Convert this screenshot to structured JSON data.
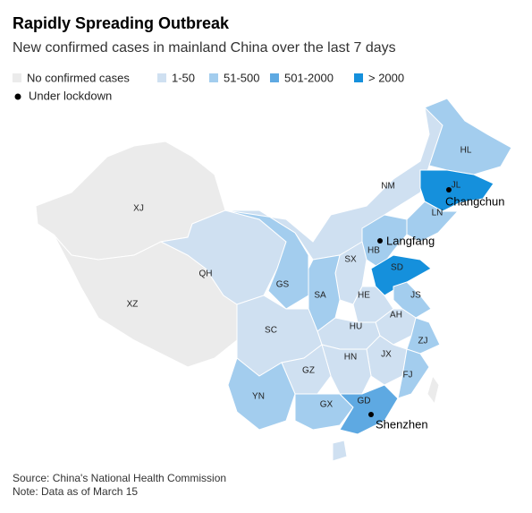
{
  "header": {
    "title": "Rapidly Spreading Outbreak",
    "subtitle": "New confirmed cases in mainland China over the last 7 days"
  },
  "legend": {
    "levels": [
      {
        "label": "No confirmed cases",
        "color": "#ebebeb"
      },
      {
        "label": "1-50",
        "color": "#cfe0f1"
      },
      {
        "label": "51-500",
        "color": "#a3cdee"
      },
      {
        "label": "501-2000",
        "color": "#5ea9e2"
      },
      {
        "label": "> 2000",
        "color": "#1590dc"
      }
    ],
    "lockdown": "Under lockdown"
  },
  "regions": [
    {
      "label": "XJ",
      "level": 0
    },
    {
      "label": "XZ",
      "level": 0
    },
    {
      "label": "QH",
      "level": 1
    },
    {
      "label": "GS",
      "level": 2
    },
    {
      "label": "NM",
      "level": 1
    },
    {
      "label": "HL",
      "level": 2
    },
    {
      "label": "JL",
      "level": 4
    },
    {
      "label": "LN",
      "level": 2
    },
    {
      "label": "HB",
      "level": 2
    },
    {
      "label": "SX",
      "level": 1
    },
    {
      "label": "SD",
      "level": 4
    },
    {
      "label": "SA",
      "level": 2
    },
    {
      "label": "HE",
      "level": 1
    },
    {
      "label": "JS",
      "level": 2
    },
    {
      "label": "AH",
      "level": 1
    },
    {
      "label": "HU",
      "level": 1
    },
    {
      "label": "SC",
      "level": 1
    },
    {
      "label": "ZJ",
      "level": 2
    },
    {
      "label": "JX",
      "level": 1
    },
    {
      "label": "HN",
      "level": 1
    },
    {
      "label": "FJ",
      "level": 2
    },
    {
      "label": "GZ",
      "level": 1
    },
    {
      "label": "YN",
      "level": 2
    },
    {
      "label": "GX",
      "level": 2
    },
    {
      "label": "GD",
      "level": 3
    }
  ],
  "cities": [
    "Changchun",
    "Langfang",
    "Shenzhen"
  ],
  "footer": {
    "source": "Source: China's National Health Commission",
    "note": "Note: Data as of March 15"
  }
}
